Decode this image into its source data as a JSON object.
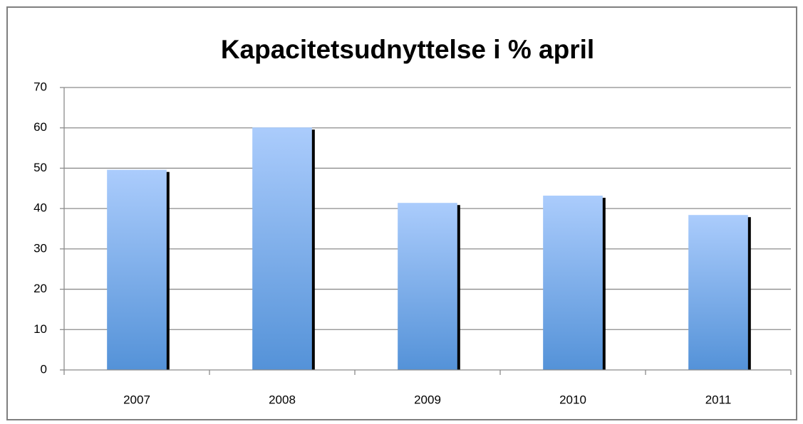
{
  "chart_data": {
    "type": "bar",
    "title": "Kapacitetsudnyttelse i % april",
    "categories": [
      "2007",
      "2008",
      "2009",
      "2010",
      "2011"
    ],
    "values": [
      49.6,
      60.1,
      41.4,
      43.2,
      38.4
    ],
    "color": "#5492d8",
    "gradient_top": "#abccfc",
    "shadow": "#000000",
    "ylim": [
      0,
      70
    ],
    "yticks": [
      0,
      10,
      20,
      30,
      40,
      50,
      60,
      70
    ],
    "grid": true
  }
}
